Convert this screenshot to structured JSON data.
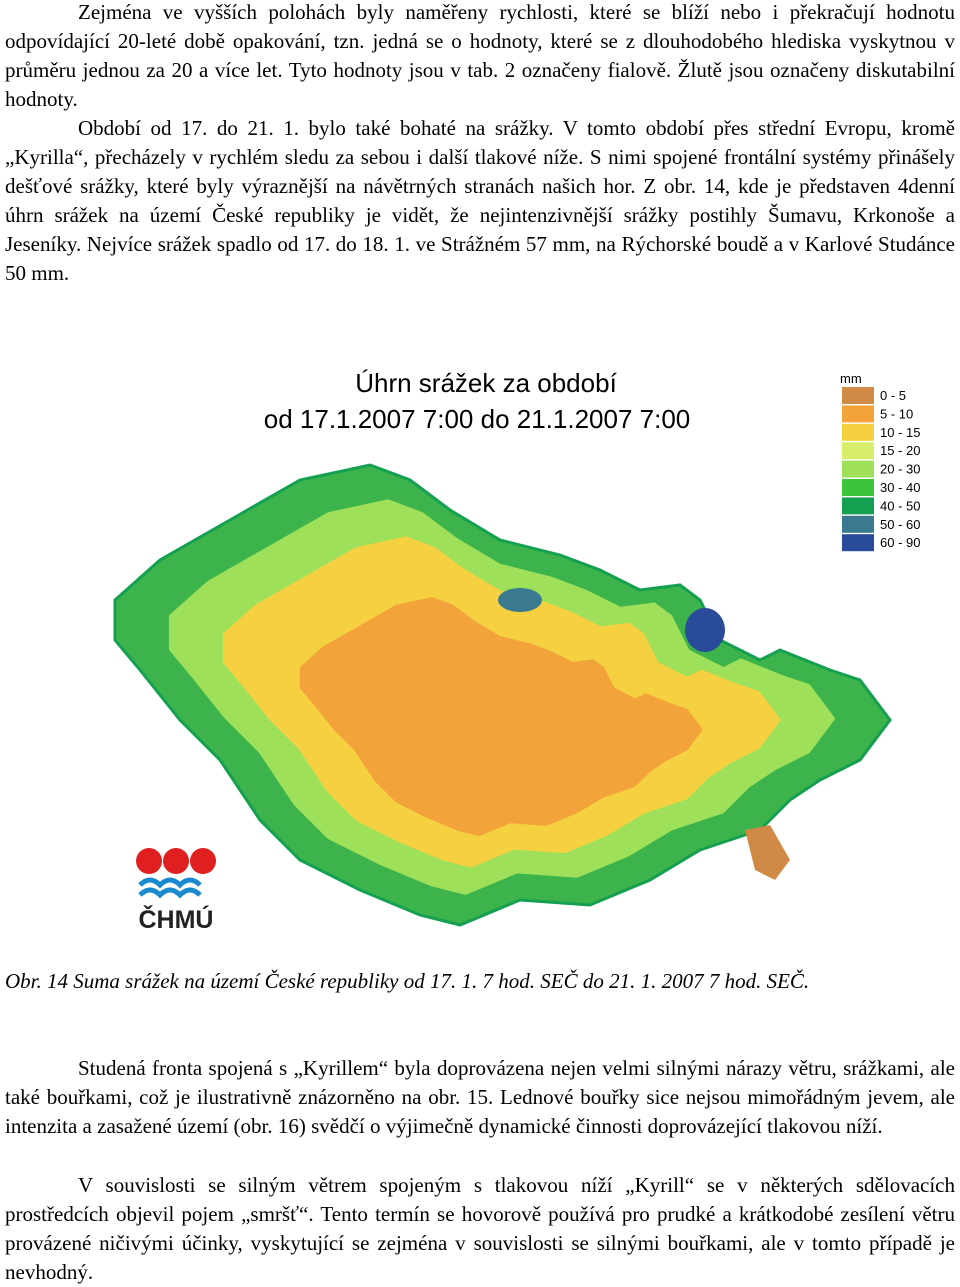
{
  "paragraphs": [
    "Zejména ve vyšších polohách byly naměřeny rychlosti, které se blíží nebo i překračují hodnotu odpovídající 20-leté době opakování, tzn. jedná se o hodnoty, které se z dlouhodobého hlediska vyskytnou v průměru jednou za 20 a více let. Tyto hodnoty jsou v tab. 2 označeny fialově. Žlutě jsou označeny diskutabilní hodnoty.",
    "Období od 17. do 21. 1. bylo také bohaté na srážky. V tomto období přes střední Evropu, kromě „Kyrilla“, přecházely v rychlém sledu za sebou i další tlakové níže. S nimi spojené frontální systémy přinášely dešťové srážky, které byly výraznější na návětrných stranách našich hor. Z obr. 14, kde je představen 4denní úhrn srážek na území České republiky je vidět, že nejintenzivnější srážky postihly Šumavu, Krkonoše a Jeseníky. Nejvíce srážek spadlo od 17. do 18. 1. ve Strážném 57 mm, na Rýchorské boudě a v Karlové Studánce 50 mm.",
    "Studená fronta spojená s „Kyrillem“ byla doprovázena nejen velmi silnými nárazy větru, srážkami, ale také bouřkami, což je ilustrativně znázorněno na obr. 15. Lednové bouřky sice nejsou mimořádným jevem, ale intenzita a zasažené území (obr. 16) svědčí o výjimečně dynamické činnosti doprovázející tlakovou níží.",
    "V souvislosti se silným větrem spojeným s tlakovou níží „Kyrill“ se v některých sdělovacích prostředcích objevil pojem „smršť“. Tento termín se hovorově používá pro prudké a krátkodobé zesílení větru provázené ničivými účinky, vyskytující se zejména v souvislosti se silnými bouřkami, ale v tomto případě je nevhodný."
  ],
  "figure": {
    "title": [
      "Úhrn srážek za období",
      "od 17.1.2007 7:00 do 21.1.2007 7:00"
    ],
    "legend": {
      "unit": "mm",
      "items": [
        {
          "label": "0 - 5",
          "color": "#d08a45"
        },
        {
          "label": "5 - 10",
          "color": "#f2a33a"
        },
        {
          "label": "10 - 15",
          "color": "#f5d040"
        },
        {
          "label": "15 - 20",
          "color": "#d8ee6a"
        },
        {
          "label": "20 - 30",
          "color": "#9ee05a"
        },
        {
          "label": "30 - 40",
          "color": "#3cc43c"
        },
        {
          "label": "40 - 50",
          "color": "#14a050"
        },
        {
          "label": "50 - 60",
          "color": "#3a7a90"
        },
        {
          "label": "60 - 90",
          "color": "#2a4a9a"
        }
      ]
    },
    "logo": "ČHMÚ"
  },
  "caption": "Obr. 14  Suma srážek na území České republiky od 17. 1. 7 hod. SEČ do 21. 1. 2007 7 hod. SEČ."
}
